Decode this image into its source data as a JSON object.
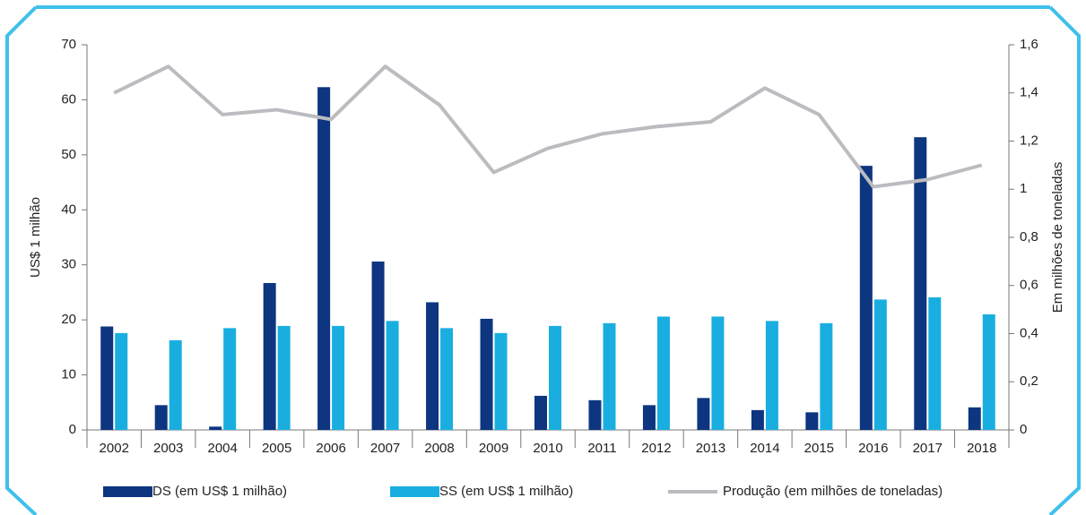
{
  "chart_data": {
    "type": "bar",
    "y_label": "US$ 1 milhão",
    "y2_label": "Em milhões de toneladas",
    "categories": [
      "2002",
      "2003",
      "2004",
      "2005",
      "2006",
      "2007",
      "2008",
      "2009",
      "2010",
      "2011",
      "2012",
      "2013",
      "2014",
      "2015",
      "2016",
      "2017",
      "2018"
    ],
    "series": [
      {
        "name": "DS (em US$ 1 milhão)",
        "type": "bar",
        "color": "#0d3580",
        "values": [
          18.8,
          4.5,
          0.6,
          26.7,
          62.3,
          30.6,
          23.2,
          20.2,
          6.2,
          5.4,
          4.5,
          5.8,
          3.6,
          3.2,
          48,
          53.2,
          4.1
        ]
      },
      {
        "name": "SS (em US$ 1 milhão)",
        "type": "bar",
        "color": "#1aaee0",
        "values": [
          17.6,
          16.3,
          18.5,
          18.9,
          18.9,
          19.8,
          18.5,
          17.6,
          18.9,
          19.4,
          20.6,
          20.6,
          19.8,
          19.4,
          23.7,
          24.1,
          21.0
        ]
      },
      {
        "name": "Produção (em milhões de toneladas)",
        "type": "line",
        "axis": "y2",
        "color": "#bbbcc0",
        "values": [
          1.4,
          1.51,
          1.31,
          1.33,
          1.29,
          1.51,
          1.35,
          1.07,
          1.17,
          1.23,
          1.26,
          1.28,
          1.42,
          1.31,
          1.01,
          1.04,
          1.1
        ]
      }
    ],
    "ylim": [
      0,
      70
    ],
    "yticks": [
      0,
      10,
      20,
      30,
      40,
      50,
      60,
      70
    ],
    "y2lim": [
      0,
      1.6
    ],
    "y2ticks": [
      0,
      {
        "value": 0.2,
        "label": "0,2"
      },
      {
        "value": 0.4,
        "label": "0,4"
      },
      {
        "value": 0.6,
        "label": "0,6"
      },
      {
        "value": 0.8,
        "label": "0,8"
      },
      1,
      {
        "value": 1.2,
        "label": "1,2"
      },
      {
        "value": 1.4,
        "label": "1,4"
      },
      {
        "value": 1.6,
        "label": "1,6"
      }
    ],
    "grid": false,
    "legend": "bottom"
  }
}
